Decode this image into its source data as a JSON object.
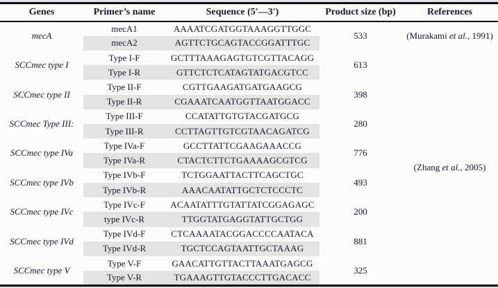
{
  "colors": {
    "row_shade": "#e3e3e1",
    "border": "#0a0a0a",
    "text": "#191930",
    "background": "#fbfbf9"
  },
  "table": {
    "headers": [
      "Genes",
      "Primer’s name",
      "Sequence (5′—3′)",
      "Product size (bp)",
      "References"
    ],
    "groups": [
      {
        "gene": "mecA",
        "product_size": "533",
        "primers": [
          {
            "name": "mecA1",
            "sequence": "AAAATCGATGGTAAAGGTTGGC"
          },
          {
            "name": "mecA2",
            "sequence": "AGTTCTGCAGTACCGGATTTGC"
          }
        ]
      },
      {
        "gene": "SCCmec type I",
        "product_size": "613",
        "primers": [
          {
            "name": "Type I-F",
            "sequence": "GCTTTAAAGAGTGTCGTTACAGG"
          },
          {
            "name": "Type I-R",
            "sequence": "GTTCTCTCATAGTATGACGTCC"
          }
        ]
      },
      {
        "gene": "SCCmec type II",
        "product_size": "398",
        "primers": [
          {
            "name": "Type II-F",
            "sequence": "CGTTGAAGATGATGAAGCG"
          },
          {
            "name": "Type II-R",
            "sequence": "CGAAATCAATGGTTAATGGACC"
          }
        ]
      },
      {
        "gene": "SCCmec Type III:",
        "product_size": "280",
        "primers": [
          {
            "name": "Type III-F",
            "sequence": "CCATATTGTGTACGATGCG"
          },
          {
            "name": "Type III-R",
            "sequence": "CCTTAGTTGTCGTAACAGATCG"
          }
        ]
      },
      {
        "gene": "SCCmec type IVa",
        "product_size": "776",
        "primers": [
          {
            "name": "Type IVa-F",
            "sequence": "GCCTTATTCGAAGAAACCG"
          },
          {
            "name": "Type IVa-R",
            "sequence": "CTACTCTTCTGAAAAGCGTCG"
          }
        ]
      },
      {
        "gene": "SCCmec type IVb",
        "product_size": "493",
        "primers": [
          {
            "name": "Type IVb-F",
            "sequence": "TCTGGAATTACTTCAGCTGC"
          },
          {
            "name": "Type IVb-R",
            "sequence": "AAACAATATTGCTCTCCCTC"
          }
        ]
      },
      {
        "gene": "SCCmec type IVc",
        "product_size": "200",
        "primers": [
          {
            "name": "Type IVc-F",
            "sequence": "ACAATATTTGTATTATCGGAGAGC"
          },
          {
            "name": "type IVc-R",
            "sequence": "TTGGTATGAGGTATTGCTGG"
          }
        ]
      },
      {
        "gene": "SCCmec type IVd",
        "product_size": "881",
        "primers": [
          {
            "name": "Type IVd-F",
            "sequence": "CTCAAAATACGGACCCCAATACA"
          },
          {
            "name": "Type IVd-R",
            "sequence": "TGCTCCAGTAATTGCTAAAG"
          }
        ]
      },
      {
        "gene": "SCCmec type V",
        "product_size": "325",
        "primers": [
          {
            "name": "Type V-F",
            "sequence": "GAACATTGTTACTTAAATGAGCG"
          },
          {
            "name": "Type V-R",
            "sequence": "TGAAAGTTGTACCCTTGACACC"
          }
        ]
      }
    ],
    "references": [
      {
        "pre": "(Murakami ",
        "etal": "et al.",
        "post": ", 1991)"
      },
      {
        "pre": "(Zhang ",
        "etal": "et al.",
        "post": ", 2005)"
      }
    ]
  }
}
